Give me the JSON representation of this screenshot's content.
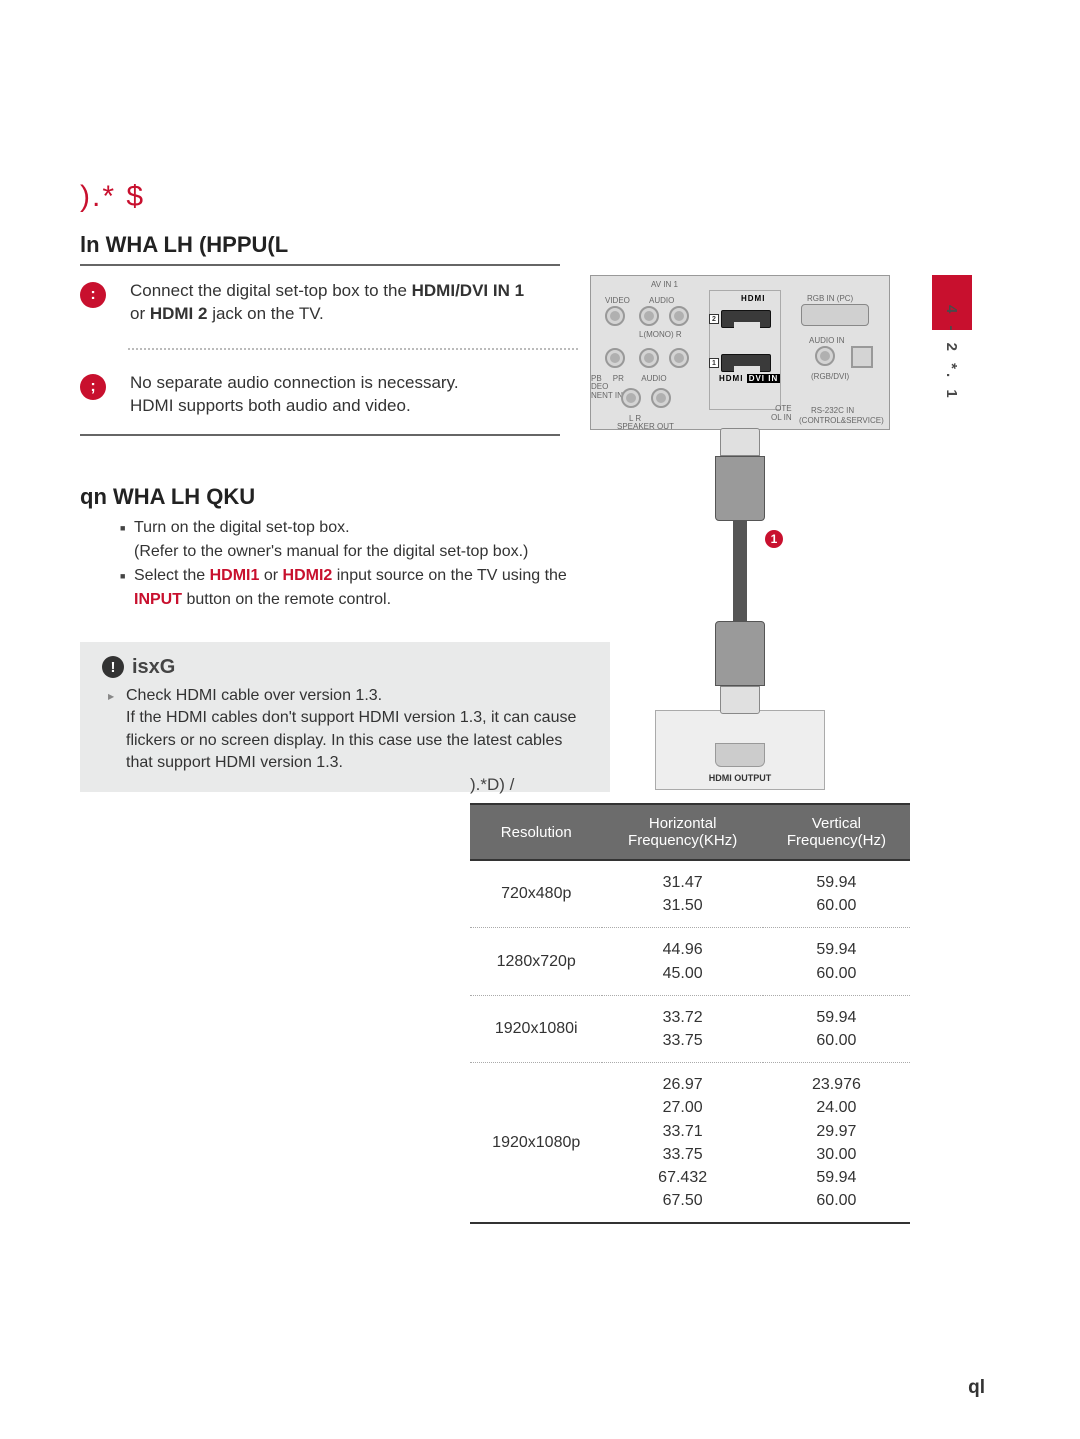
{
  "page": {
    "title": ").* $",
    "side_vertical": "4   -  2 *.      1",
    "page_number": "ql"
  },
  "sec1": {
    "heading": "ln WHA LH (HPPU(L",
    "b1_num": ":",
    "b1_line1": "Connect the digital set-top box to the ",
    "b1_bold": "HDMI/DVI IN 1",
    "b1_mid": "or ",
    "b1_bold2": "HDMI 2",
    "b1_end": " jack on the TV.",
    "b2_num": ";",
    "b2_line1": "No separate audio connection is necessary.",
    "b2_line2": "HDMI supports both audio and video."
  },
  "sec2": {
    "heading": "qn WHA LH QKU",
    "li1a": "Turn on the digital set-top box.",
    "li1b": "(Refer to the owner's manual for the digital set-top box.)",
    "li2a": "Select the ",
    "li2_h1": "HDMI1",
    "li2_or": " or ",
    "li2_h2": "HDMI2",
    "li2b": " input source on the TV using the ",
    "li2_h3": "INPUT",
    "li2c": " button on the remote control."
  },
  "note": {
    "heading": "isxG",
    "body": "Check HDMI cable over version 1.3.\nIf the HDMI cables don't support HDMI version 1.3, it can cause flickers or no screen display. In this case use the latest cables that support HDMI version 1.3."
  },
  "diagram": {
    "av_label": "AV IN 1",
    "video": "VIDEO",
    "audio": "AUDIO",
    "lmono": "L(MONO)    R",
    "hdmi_brand": "HDMI",
    "rgb": "RGB IN (PC)",
    "audio_in": "AUDIO IN",
    "rgb_dvi": "(RGB/DVI)",
    "dvi": "DVI IN",
    "speaker": "SPEAKER OUT",
    "lr": "L         R",
    "rs232": "RS-232C IN",
    "ctrl": "(CONTROL&SERVICE)",
    "remote": "OTE\nOL IN",
    "nent": "DEO\nNENT IN",
    "pbpr": "PB     PR        AUDIO",
    "port2": "2",
    "port1": "1",
    "cable_num": "1",
    "stb_label": "HDMI OUTPUT"
  },
  "table": {
    "title": ").*D) /",
    "headers": {
      "c1": "Resolution",
      "c2": "Horizontal\nFrequency(KHz)",
      "c3": "Vertical\nFrequency(Hz)"
    },
    "rows": [
      {
        "res": "720x480p",
        "h": [
          "31.47",
          "31.50"
        ],
        "v": [
          "59.94",
          "60.00"
        ]
      },
      {
        "res": "1280x720p",
        "h": [
          "44.96",
          "45.00"
        ],
        "v": [
          "59.94",
          "60.00"
        ]
      },
      {
        "res": "1920x1080i",
        "h": [
          "33.72",
          "33.75"
        ],
        "v": [
          "59.94",
          "60.00"
        ]
      },
      {
        "res": "1920x1080p",
        "h": [
          "26.97",
          "27.00",
          "33.71",
          "33.75",
          "67.432",
          "67.50"
        ],
        "v": [
          "23.976",
          "24.00",
          "29.97",
          "30.00",
          "59.94",
          "60.00"
        ]
      }
    ]
  }
}
